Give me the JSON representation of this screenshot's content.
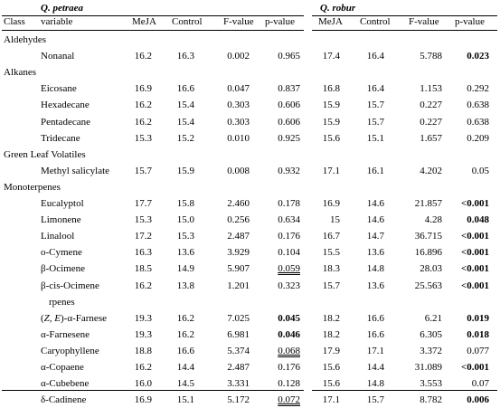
{
  "header": {
    "species_1": "Q. petraea",
    "species_2": "Q. robur",
    "class_label": "Class",
    "variable_label": "variable",
    "columns_1": [
      "MeJA",
      "Control",
      "F-value",
      "p-value"
    ],
    "columns_2": [
      "MeJA",
      "Control",
      "F-value",
      "p-value"
    ]
  },
  "rows": [
    {
      "type": "category",
      "label": "Aldehydes"
    },
    {
      "type": "data",
      "name": "Nonanal",
      "p": [
        "16.2",
        "16.3",
        "0.002",
        "0.965"
      ],
      "r": [
        "17.4",
        "16.4",
        "5.788",
        "0.023"
      ],
      "pb": false,
      "rb": true,
      "pu": false
    },
    {
      "type": "category",
      "label": "Alkanes"
    },
    {
      "type": "data",
      "name": "Eicosane",
      "p": [
        "16.9",
        "16.6",
        "0.047",
        "0.837"
      ],
      "r": [
        "16.8",
        "16.4",
        "1.153",
        "0.292"
      ],
      "pb": false,
      "rb": false,
      "pu": false
    },
    {
      "type": "data",
      "name": "Hexadecane",
      "p": [
        "16.2",
        "15.4",
        "0.303",
        "0.606"
      ],
      "r": [
        "15.9",
        "15.7",
        "0.227",
        "0.638"
      ],
      "pb": false,
      "rb": false,
      "pu": false
    },
    {
      "type": "data",
      "name": "Pentadecane",
      "p": [
        "16.2",
        "15.4",
        "0.303",
        "0.606"
      ],
      "r": [
        "15.9",
        "15.7",
        "0.227",
        "0.638"
      ],
      "pb": false,
      "rb": false,
      "pu": false
    },
    {
      "type": "data",
      "name": "Tridecane",
      "p": [
        "15.3",
        "15.2",
        "0.010",
        "0.925"
      ],
      "r": [
        "15.6",
        "15.1",
        "1.657",
        "0.209"
      ],
      "pb": false,
      "rb": false,
      "pu": false
    },
    {
      "type": "category",
      "label": "Green Leaf Volatiles"
    },
    {
      "type": "data",
      "name": "Methyl salicylate",
      "p": [
        "15.7",
        "15.9",
        "0.008",
        "0.932"
      ],
      "r": [
        "17.1",
        "16.1",
        "4.202",
        "0.05"
      ],
      "pb": false,
      "rb": false,
      "pu": false
    },
    {
      "type": "category",
      "label": "Monoterpenes"
    },
    {
      "type": "data",
      "name": "Eucalyptol",
      "p": [
        "17.7",
        "15.8",
        "2.460",
        "0.178"
      ],
      "r": [
        "16.9",
        "14.6",
        "21.857",
        "<0.001"
      ],
      "pb": false,
      "rb": true,
      "pu": false
    },
    {
      "type": "data",
      "name": "Limonene",
      "p": [
        "15.3",
        "15.0",
        "0.256",
        "0.634"
      ],
      "r": [
        "15",
        "14.6",
        "4.28",
        "0.048"
      ],
      "pb": false,
      "rb": true,
      "pu": false
    },
    {
      "type": "data",
      "name": "Linalool",
      "p": [
        "17.2",
        "15.3",
        "2.487",
        "0.176"
      ],
      "r": [
        "16.7",
        "14.7",
        "36.715",
        "<0.001"
      ],
      "pb": false,
      "rb": true,
      "pu": false
    },
    {
      "type": "data",
      "name": "o-Cymene",
      "p": [
        "16.3",
        "13.6",
        "3.929",
        "0.104"
      ],
      "r": [
        "15.5",
        "13.6",
        "16.896",
        "<0.001"
      ],
      "pb": false,
      "rb": true,
      "pu": false
    },
    {
      "type": "data",
      "name": "β-Ocimene",
      "p": [
        "18.5",
        "14.9",
        "5.907",
        "0.059"
      ],
      "r": [
        "18.3",
        "14.8",
        "28.03",
        "<0.001"
      ],
      "pb": false,
      "rb": true,
      "pu": true
    },
    {
      "type": "data",
      "name": "β-cis-Ocimene",
      "p": [
        "16.2",
        "13.8",
        "1.201",
        "0.323"
      ],
      "r": [
        "15.7",
        "13.6",
        "25.563",
        "<0.001"
      ],
      "pb": false,
      "rb": true,
      "pu": false
    },
    {
      "type": "category2",
      "label": "rpenes"
    },
    {
      "type": "data",
      "name_pre": "(",
      "name_it": "Z, E",
      "name_post": ")-α-Farnese",
      "p": [
        "19.3",
        "16.2",
        "7.025",
        "0.045"
      ],
      "r": [
        "18.2",
        "16.6",
        "6.21",
        "0.019"
      ],
      "pb": true,
      "rb": true,
      "pu": false
    },
    {
      "type": "data",
      "name": "α-Farnesene",
      "p": [
        "19.3",
        "16.2",
        "6.981",
        "0.046"
      ],
      "r": [
        "18.2",
        "16.6",
        "6.305",
        "0.018"
      ],
      "pb": true,
      "rb": true,
      "pu": false
    },
    {
      "type": "data",
      "name": "Caryophyllene",
      "p": [
        "18.8",
        "16.6",
        "5.374",
        "0.068"
      ],
      "r": [
        "17.9",
        "17.1",
        "3.372",
        "0.077"
      ],
      "pb": false,
      "rb": false,
      "pu": true
    },
    {
      "type": "data",
      "name": "α-Copaene",
      "p": [
        "16.2",
        "14.4",
        "2.487",
        "0.176"
      ],
      "r": [
        "15.6",
        "14.4",
        "31.089",
        "<0.001"
      ],
      "pb": false,
      "rb": true,
      "pu": false
    },
    {
      "type": "data",
      "name": "α-Cubebene",
      "p": [
        "16.0",
        "14.5",
        "3.331",
        "0.128"
      ],
      "r": [
        "15.6",
        "14.8",
        "3.553",
        "0.07"
      ],
      "pb": false,
      "rb": false,
      "pu": false
    },
    {
      "type": "data",
      "name": "δ-Cadinene",
      "p": [
        "16.9",
        "15.1",
        "5.172",
        "0.072"
      ],
      "r": [
        "17.1",
        "15.7",
        "8.782",
        "0.006"
      ],
      "pb": false,
      "rb": true,
      "pu": true
    }
  ]
}
